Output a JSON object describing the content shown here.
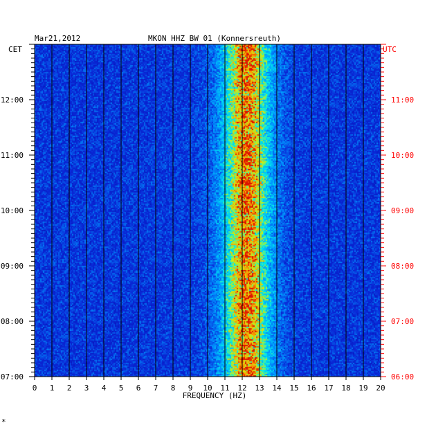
{
  "chart_data": {
    "type": "heatmap",
    "header_left": "Mar21,2012",
    "title": "MKON HHZ BW 01 (Konnersreuth)",
    "left_timezone": "CET",
    "right_timezone": "UTC",
    "xlabel": "FREQUENCY (HZ)",
    "xlim": [
      0,
      20
    ],
    "x_ticks": [
      "0",
      "1",
      "2",
      "3",
      "4",
      "5",
      "6",
      "7",
      "8",
      "9",
      "10",
      "11",
      "12",
      "13",
      "14",
      "15",
      "16",
      "17",
      "18",
      "19",
      "20"
    ],
    "y_cet_range": [
      "07:00",
      "13:00"
    ],
    "y_ticks_cet": [
      "07:00",
      "08:00",
      "09:00",
      "10:00",
      "11:00",
      "12:00"
    ],
    "y_ticks_utc": [
      "06:00",
      "07:00",
      "08:00",
      "09:00",
      "10:00",
      "11:00"
    ],
    "colors": {
      "background": "#0a1fb8",
      "left_axis": "#000000",
      "right_axis": "#ff0000"
    },
    "dominant_band_hz": [
      10.5,
      14
    ],
    "peak_frequency_hz": 12.3,
    "footer_mark": "*"
  }
}
